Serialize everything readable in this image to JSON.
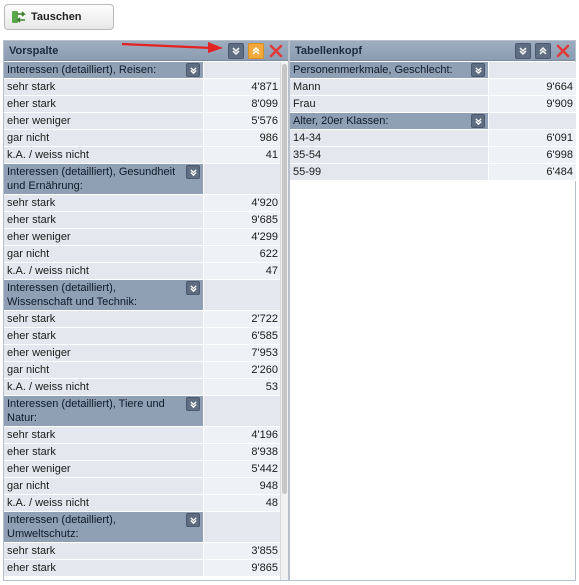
{
  "toolbar": {
    "swap_label": "Tauschen"
  },
  "left_panel": {
    "title": "Vorspalte",
    "groups": [
      {
        "label": "Interessen (detailliert), Reisen:",
        "rows": [
          {
            "label": "sehr stark",
            "value": "4'871"
          },
          {
            "label": "eher stark",
            "value": "8'099"
          },
          {
            "label": "eher weniger",
            "value": "5'576"
          },
          {
            "label": "gar nicht",
            "value": "986"
          },
          {
            "label": "k.A. / weiss nicht",
            "value": "41"
          }
        ]
      },
      {
        "label": "Interessen (detailliert), Gesundheit und Ernährung:",
        "rows": [
          {
            "label": "sehr stark",
            "value": "4'920"
          },
          {
            "label": "eher stark",
            "value": "9'685"
          },
          {
            "label": "eher weniger",
            "value": "4'299"
          },
          {
            "label": "gar nicht",
            "value": "622"
          },
          {
            "label": "k.A. / weiss nicht",
            "value": "47"
          }
        ]
      },
      {
        "label": "Interessen (detailliert), Wissenschaft und Technik:",
        "rows": [
          {
            "label": "sehr stark",
            "value": "2'722"
          },
          {
            "label": "eher stark",
            "value": "6'585"
          },
          {
            "label": "eher weniger",
            "value": "7'953"
          },
          {
            "label": "gar nicht",
            "value": "2'260"
          },
          {
            "label": "k.A. / weiss nicht",
            "value": "53"
          }
        ]
      },
      {
        "label": "Interessen (detailliert), Tiere und Natur:",
        "rows": [
          {
            "label": "sehr stark",
            "value": "4'196"
          },
          {
            "label": "eher stark",
            "value": "8'938"
          },
          {
            "label": "eher weniger",
            "value": "5'442"
          },
          {
            "label": "gar nicht",
            "value": "948"
          },
          {
            "label": "k.A. / weiss nicht",
            "value": "48"
          }
        ]
      },
      {
        "label": "Interessen (detailliert), Umweltschutz:",
        "rows": [
          {
            "label": "sehr stark",
            "value": "3'855"
          },
          {
            "label": "eher stark",
            "value": "9'865"
          }
        ]
      }
    ]
  },
  "right_panel": {
    "title": "Tabellenkopf",
    "groups": [
      {
        "label": "Personenmerkmale, Geschlecht:",
        "rows": [
          {
            "label": "Mann",
            "value": "9'664"
          },
          {
            "label": "Frau",
            "value": "9'909"
          }
        ]
      },
      {
        "label": "Alter, 20er Klassen:",
        "rows": [
          {
            "label": "14-34",
            "value": "6'091"
          },
          {
            "label": "35-54",
            "value": "6'998"
          },
          {
            "label": "55-99",
            "value": "6'484"
          }
        ]
      }
    ]
  },
  "colors": {
    "header_bg": "#8c9cb1",
    "group_bg": "#8fa0b5",
    "row_bg": "#e4e8ee",
    "active_button": "#f2a93b",
    "close_red": "#e03b3b",
    "annotation_arrow": "#e32222"
  },
  "icons": {
    "swap": "swap-arrows-icon",
    "expand": "double-chevron-down-icon",
    "collapse": "double-chevron-up-icon",
    "remove": "close-x-icon"
  }
}
